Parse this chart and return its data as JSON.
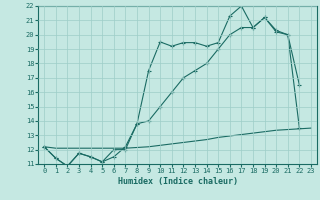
{
  "title": "",
  "xlabel": "Humidex (Indice chaleur)",
  "xlim": [
    -0.5,
    23.5
  ],
  "ylim": [
    11,
    22
  ],
  "xticks": [
    0,
    1,
    2,
    3,
    4,
    5,
    6,
    7,
    8,
    9,
    10,
    11,
    12,
    13,
    14,
    15,
    16,
    17,
    18,
    19,
    20,
    21,
    22,
    23
  ],
  "yticks": [
    11,
    12,
    13,
    14,
    15,
    16,
    17,
    18,
    19,
    20,
    21,
    22
  ],
  "background_color": "#c5e8e2",
  "grid_color": "#9ecec8",
  "line_color": "#1a6b63",
  "line1_x": [
    0,
    1,
    2,
    3,
    4,
    5,
    6,
    7,
    8,
    9,
    10,
    11,
    12,
    13,
    14,
    15,
    16,
    17,
    18,
    19,
    20,
    21,
    22
  ],
  "line1_y": [
    12.2,
    11.4,
    10.85,
    11.75,
    11.5,
    11.15,
    11.5,
    12.2,
    13.8,
    17.5,
    19.5,
    19.2,
    19.45,
    19.45,
    19.2,
    19.45,
    21.3,
    22.0,
    20.5,
    21.2,
    20.3,
    20.0,
    16.5
  ],
  "line2_x": [
    0,
    1,
    2,
    3,
    4,
    5,
    6,
    7,
    8,
    9,
    10,
    11,
    12,
    13,
    14,
    15,
    16,
    17,
    18,
    19,
    20,
    21,
    22
  ],
  "line2_y": [
    12.2,
    11.4,
    10.85,
    11.75,
    11.5,
    11.15,
    12.0,
    12.0,
    13.8,
    14.0,
    15.0,
    16.0,
    17.0,
    17.5,
    18.0,
    19.0,
    20.0,
    20.5,
    20.5,
    21.2,
    20.2,
    20.0,
    13.5
  ],
  "line3_x": [
    0,
    1,
    2,
    3,
    4,
    5,
    6,
    7,
    8,
    9,
    10,
    11,
    12,
    13,
    14,
    15,
    16,
    17,
    18,
    19,
    20,
    21,
    22,
    23
  ],
  "line3_y": [
    12.2,
    12.1,
    12.1,
    12.1,
    12.1,
    12.1,
    12.1,
    12.1,
    12.15,
    12.2,
    12.3,
    12.4,
    12.5,
    12.6,
    12.7,
    12.85,
    12.95,
    13.05,
    13.15,
    13.25,
    13.35,
    13.4,
    13.45,
    13.5
  ],
  "marker": "+",
  "markersize": 3,
  "linewidth": 0.8,
  "tick_fontsize": 5,
  "xlabel_fontsize": 6
}
